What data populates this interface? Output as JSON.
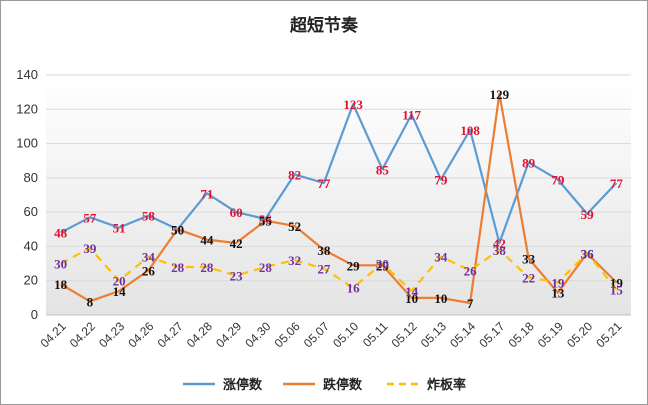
{
  "chart_data": {
    "type": "line",
    "title": "超短节奏",
    "xlabel": "",
    "ylabel": "",
    "ylim": [
      0,
      140
    ],
    "yticks": [
      0,
      20,
      40,
      60,
      80,
      100,
      120,
      140
    ],
    "grid": true,
    "legend_position": "bottom",
    "categories": [
      "04.21",
      "04.22",
      "04.23",
      "04.26",
      "04.27",
      "04.28",
      "04.29",
      "04.30",
      "05.06",
      "05.07",
      "05.10",
      "05.11",
      "05.12",
      "05.13",
      "05.14",
      "05.17",
      "05.18",
      "05.19",
      "05.20",
      "05.21"
    ],
    "series": [
      {
        "name": "涨停数",
        "color": "#5b9bd5",
        "style": "solid",
        "label_color": "#e0102f",
        "values": [
          48,
          57,
          51,
          58,
          50,
          71,
          60,
          56,
          82,
          77,
          123,
          85,
          117,
          79,
          108,
          42,
          89,
          79,
          59,
          77
        ]
      },
      {
        "name": "跌停数",
        "color": "#ed7d31",
        "style": "solid",
        "label_color": "#111111",
        "values": [
          18,
          8,
          14,
          26,
          50,
          44,
          42,
          55,
          52,
          38,
          29,
          29,
          10,
          10,
          7,
          129,
          33,
          13,
          36,
          19
        ]
      },
      {
        "name": "炸板率",
        "color": "#ffc000",
        "style": "dashed",
        "label_color": "#7030a0",
        "values": [
          30,
          39,
          20,
          34,
          28,
          28,
          23,
          28,
          32,
          27,
          16,
          30,
          14,
          34,
          26,
          38,
          22,
          19,
          36,
          15
        ]
      }
    ]
  }
}
